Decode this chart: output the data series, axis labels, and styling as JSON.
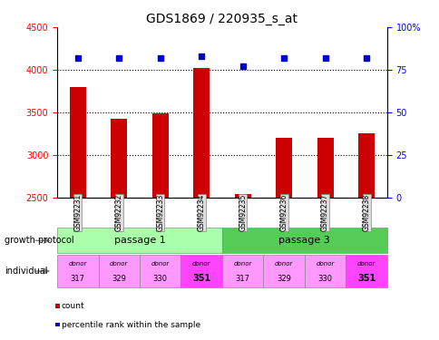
{
  "title": "GDS1869 / 220935_s_at",
  "samples": [
    "GSM92231",
    "GSM92232",
    "GSM92233",
    "GSM92234",
    "GSM92235",
    "GSM92236",
    "GSM92237",
    "GSM92238"
  ],
  "counts": [
    3800,
    3420,
    3490,
    4020,
    2540,
    3200,
    3200,
    3250
  ],
  "percentiles": [
    82,
    82,
    82,
    83,
    77,
    82,
    82,
    82
  ],
  "ylim_left": [
    2500,
    4500
  ],
  "ylim_right": [
    0,
    100
  ],
  "yticks_left": [
    2500,
    3000,
    3500,
    4000,
    4500
  ],
  "yticks_right": [
    0,
    25,
    50,
    75,
    100
  ],
  "passage_groups": [
    {
      "label": "passage 1",
      "start": 0,
      "end": 4,
      "color": "#aaffaa"
    },
    {
      "label": "passage 3",
      "start": 4,
      "end": 8,
      "color": "#55cc55"
    }
  ],
  "donors": [
    "317",
    "329",
    "330",
    "351",
    "317",
    "329",
    "330",
    "351"
  ],
  "donor_colors": [
    "#ff99ff",
    "#ff99ff",
    "#ff99ff",
    "#ff44ff",
    "#ff99ff",
    "#ff99ff",
    "#ff99ff",
    "#ff44ff"
  ],
  "bar_color": "#cc0000",
  "dot_color": "#0000cc",
  "bar_width": 0.4,
  "label_count": "count",
  "label_percentile": "percentile rank within the sample",
  "growth_protocol_label": "growth protocol",
  "individual_label": "individual"
}
